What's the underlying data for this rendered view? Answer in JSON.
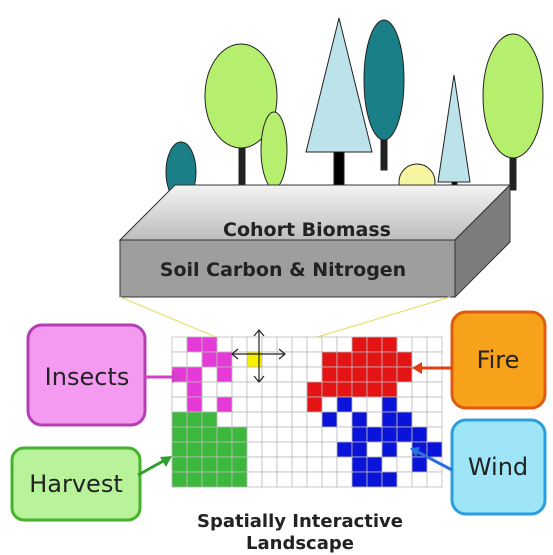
{
  "slab": {
    "top": "Cohort Biomass",
    "front": "Soil Carbon & Nitrogen"
  },
  "boxes": {
    "insects": "Insects",
    "harvest": "Harvest",
    "fire": "Fire",
    "wind": "Wind"
  },
  "caption": {
    "line1": "Spatially Interactive",
    "line2": "Landscape"
  }
}
